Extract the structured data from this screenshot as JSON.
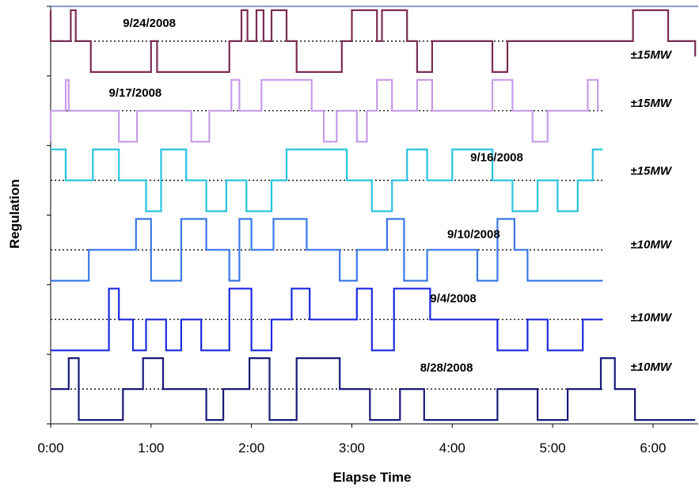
{
  "chart_data": {
    "type": "line",
    "xlabel": "Elapse Time",
    "ylabel": "Regulation",
    "x_ticks": [
      "0:00",
      "1:00",
      "2:00",
      "3:00",
      "4:00",
      "5:00",
      "6:00"
    ],
    "xlim_hours": [
      0,
      6.45
    ],
    "baseline": "dotted",
    "series": [
      {
        "name": "9/24/2008",
        "range": "±15MW",
        "color": "#7b2c52",
        "x": [
          0.0,
          0.0,
          0.2,
          0.2,
          0.25,
          0.25,
          0.4,
          0.4,
          1.0,
          1.0,
          1.06,
          1.06,
          1.78,
          1.78,
          1.9,
          1.9,
          1.96,
          1.96,
          2.05,
          2.05,
          2.12,
          2.12,
          2.2,
          2.2,
          2.35,
          2.35,
          2.45,
          2.45,
          2.9,
          2.9,
          3.0,
          3.0,
          3.25,
          3.25,
          3.3,
          3.3,
          3.55,
          3.55,
          3.65,
          3.65,
          3.8,
          3.8,
          4.4,
          4.4,
          4.55,
          4.55,
          5.1,
          5.1,
          5.8,
          5.8,
          6.15,
          6.15,
          6.42,
          6.42
        ],
        "y": [
          1,
          0,
          0,
          1,
          1,
          0,
          0,
          -1,
          -1,
          0,
          0,
          -1,
          -1,
          0,
          0,
          1,
          1,
          0,
          0,
          1,
          1,
          0,
          0,
          1,
          1,
          0,
          0,
          -1,
          -1,
          0,
          0,
          1,
          1,
          0,
          0,
          1,
          1,
          0,
          0,
          -1,
          -1,
          0,
          0,
          -1,
          -1,
          0,
          0,
          0,
          0,
          1,
          1,
          0,
          0,
          -0.5
        ]
      },
      {
        "name": "9/17/2008",
        "range": "±15MW",
        "color": "#c79be8",
        "x": [
          0.0,
          0.0,
          0.15,
          0.15,
          0.18,
          0.18,
          0.68,
          0.68,
          0.86,
          0.86,
          1.4,
          1.4,
          1.58,
          1.58,
          1.8,
          1.8,
          1.88,
          1.88,
          2.1,
          2.1,
          2.6,
          2.6,
          2.72,
          2.72,
          2.85,
          2.85,
          3.05,
          3.05,
          3.15,
          3.15,
          3.25,
          3.25,
          3.4,
          3.4,
          3.65,
          3.65,
          3.8,
          3.8,
          4.4,
          4.4,
          4.6,
          4.6,
          4.8,
          4.8,
          4.95,
          4.95,
          5.35,
          5.35,
          5.45,
          5.45
        ],
        "y": [
          -1,
          0,
          0,
          1,
          1,
          0,
          0,
          -1,
          -1,
          0,
          0,
          -1,
          -1,
          0,
          0,
          1,
          1,
          0,
          0,
          1,
          1,
          0,
          0,
          -1,
          -1,
          0,
          0,
          -1,
          -1,
          0,
          0,
          1,
          1,
          0,
          0,
          1,
          1,
          0,
          0,
          1,
          1,
          0,
          0,
          -1,
          -1,
          0,
          0,
          1,
          1,
          0
        ]
      },
      {
        "name": "9/16/2008",
        "range": "±15MW",
        "color": "#29c4e0",
        "x": [
          0.0,
          0.0,
          0.15,
          0.15,
          0.42,
          0.42,
          0.68,
          0.68,
          0.95,
          0.95,
          1.1,
          1.1,
          1.35,
          1.35,
          1.55,
          1.55,
          1.75,
          1.75,
          1.95,
          1.95,
          2.2,
          2.2,
          2.35,
          2.35,
          2.95,
          2.95,
          3.2,
          3.2,
          3.4,
          3.4,
          3.55,
          3.55,
          3.75,
          3.75,
          4.0,
          4.0,
          4.4,
          4.4,
          4.6,
          4.6,
          4.85,
          4.85,
          5.05,
          5.05,
          5.25,
          5.25,
          5.4,
          5.4,
          5.5
        ],
        "y": [
          1,
          1,
          1,
          0,
          0,
          1,
          1,
          0,
          0,
          -1,
          -1,
          1,
          1,
          0,
          0,
          -1,
          -1,
          0,
          0,
          -1,
          -1,
          0,
          0,
          1,
          1,
          0,
          0,
          -1,
          -1,
          0,
          0,
          1,
          1,
          0,
          0,
          1,
          1,
          0,
          0,
          -1,
          -1,
          0,
          0,
          -1,
          -1,
          0,
          0,
          1,
          1
        ]
      },
      {
        "name": "9/10/2008",
        "range": "±10MW",
        "color": "#3a78e8",
        "x": [
          0.0,
          0.0,
          0.38,
          0.38,
          0.48,
          0.48,
          0.85,
          0.85,
          1.0,
          1.0,
          1.3,
          1.3,
          1.55,
          1.55,
          1.78,
          1.78,
          1.88,
          1.88,
          2.0,
          2.0,
          2.22,
          2.22,
          2.55,
          2.55,
          2.88,
          2.88,
          3.05,
          3.05,
          3.35,
          3.35,
          3.52,
          3.52,
          3.75,
          3.75,
          4.25,
          4.25,
          4.45,
          4.45,
          4.62,
          4.62,
          4.75,
          4.75,
          5.5
        ],
        "y": [
          -1,
          -1,
          -1,
          0,
          0,
          0,
          0,
          1,
          1,
          -1,
          -1,
          1,
          1,
          0,
          0,
          -1,
          -1,
          1,
          1,
          0,
          0,
          1,
          1,
          0,
          0,
          -1,
          -1,
          0,
          0,
          1,
          1,
          -1,
          -1,
          0,
          0,
          -1,
          -1,
          1,
          1,
          0,
          0,
          -1,
          -1
        ]
      },
      {
        "name": "9/4/2008",
        "range": "±10MW",
        "color": "#1b29dd",
        "x": [
          0.0,
          0.0,
          0.58,
          0.58,
          0.68,
          0.68,
          0.82,
          0.82,
          0.95,
          0.95,
          1.15,
          1.15,
          1.3,
          1.3,
          1.5,
          1.5,
          1.78,
          1.78,
          2.0,
          2.0,
          2.2,
          2.2,
          2.4,
          2.4,
          2.58,
          2.58,
          3.05,
          3.05,
          3.2,
          3.2,
          3.42,
          3.42,
          3.78,
          3.78,
          4.45,
          4.45,
          4.75,
          4.75,
          4.95,
          4.95,
          5.3,
          5.3,
          5.5
        ],
        "y": [
          -1,
          -1,
          -1,
          1,
          1,
          0,
          0,
          -1,
          -1,
          0,
          0,
          -1,
          -1,
          0,
          0,
          -1,
          -1,
          1,
          1,
          -1,
          -1,
          0,
          0,
          1,
          1,
          0,
          0,
          1,
          1,
          -1,
          -1,
          1,
          1,
          0,
          0,
          -1,
          -1,
          0,
          0,
          -1,
          -1,
          0,
          0
        ]
      },
      {
        "name": "8/28/2008",
        "range": "±10MW",
        "color": "#1a1a7a",
        "x": [
          0.0,
          0.0,
          0.18,
          0.18,
          0.28,
          0.28,
          0.72,
          0.72,
          0.92,
          0.92,
          1.12,
          1.12,
          1.55,
          1.55,
          1.72,
          1.72,
          1.98,
          1.98,
          2.18,
          2.18,
          2.45,
          2.45,
          2.88,
          2.88,
          3.18,
          3.18,
          3.48,
          3.48,
          3.72,
          3.72,
          4.45,
          4.45,
          4.85,
          4.85,
          5.15,
          5.15,
          5.48,
          5.48,
          5.62,
          5.62,
          5.82,
          5.82,
          6.42
        ],
        "y": [
          0,
          0,
          0,
          1,
          1,
          -1,
          -1,
          0,
          0,
          1,
          1,
          0,
          0,
          -1,
          -1,
          0,
          0,
          1,
          1,
          -1,
          -1,
          1,
          1,
          0,
          0,
          -1,
          -1,
          0,
          0,
          -1,
          -1,
          0,
          0,
          -1,
          -1,
          0,
          0,
          1,
          1,
          0,
          0,
          -1,
          -1
        ]
      }
    ]
  }
}
